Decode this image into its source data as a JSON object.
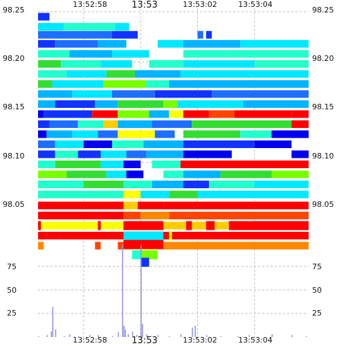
{
  "chart_data": {
    "type": "heatmap",
    "title": "",
    "x_ticks": [
      "13:52:58",
      "13:53",
      "13:53:02",
      "13:53:04"
    ],
    "x_tick_seconds": [
      -2,
      0,
      2,
      4
    ],
    "x_range_seconds": [
      -3.6,
      5.9
    ],
    "price_ticks": [
      "98.25",
      "98.20",
      "98.15",
      "98.10",
      "98.05"
    ],
    "price_tick_values": [
      98.25,
      98.2,
      98.15,
      98.1,
      98.05
    ],
    "price_range": [
      98.017,
      98.252
    ],
    "volume_ticks": [
      "75",
      "50",
      "25"
    ],
    "volume_tick_values": [
      75,
      50,
      25
    ],
    "volume_range": [
      0,
      98
    ],
    "grid": true,
    "colors": {
      "grid": "#bbbbbb",
      "volume_bar": "#8f8fe0",
      "palette": [
        "#0000ee",
        "#1133ff",
        "#1e6fff",
        "#00b4ff",
        "#00e8ff",
        "#22ffcc",
        "#33dd33",
        "#77ff00",
        "#ffff00",
        "#ffcc00",
        "#ff8800",
        "#ff4400",
        "#ff0000"
      ]
    },
    "ladder_bands": [
      {
        "price": 98.245,
        "segments": [
          [
            -3.6,
            -3.2,
            1
          ]
        ]
      },
      {
        "price": 98.235,
        "segments": [
          [
            -3.6,
            -2.7,
            4
          ],
          [
            -2.7,
            -0.9,
            5
          ],
          [
            -0.9,
            -0.4,
            4
          ]
        ]
      },
      {
        "price": 98.227,
        "segments": [
          [
            -3.6,
            -1.0,
            2
          ],
          [
            -1.0,
            -0.1,
            1
          ],
          [
            2.0,
            2.2,
            2
          ],
          [
            2.3,
            2.5,
            1
          ]
        ]
      },
      {
        "price": 98.218,
        "segments": [
          [
            -3.6,
            -3.0,
            1
          ],
          [
            -3.0,
            -1.5,
            2
          ],
          [
            -1.5,
            -0.5,
            3
          ],
          [
            0.6,
            1.5,
            4
          ],
          [
            1.5,
            3.5,
            3
          ],
          [
            3.5,
            5.9,
            4
          ]
        ]
      },
      {
        "price": 98.208,
        "segments": [
          [
            -3.6,
            -2.5,
            5
          ],
          [
            -2.5,
            -1.0,
            3
          ],
          [
            -1.0,
            0.3,
            4
          ],
          [
            1.5,
            3.0,
            5
          ],
          [
            3.0,
            5.9,
            5
          ]
        ]
      },
      {
        "price": 98.198,
        "segments": [
          [
            -3.6,
            -2.8,
            6
          ],
          [
            -2.8,
            -1.4,
            5
          ],
          [
            -1.4,
            -0.3,
            4
          ],
          [
            0.3,
            1.5,
            5
          ],
          [
            1.5,
            4.0,
            4
          ],
          [
            4.0,
            5.9,
            5
          ]
        ]
      },
      {
        "price": 98.188,
        "segments": [
          [
            -3.6,
            -2.6,
            5
          ],
          [
            -2.6,
            -1.2,
            4
          ],
          [
            -1.2,
            -0.2,
            6
          ],
          [
            -0.2,
            1.4,
            3
          ],
          [
            1.4,
            5.9,
            4
          ]
        ]
      },
      {
        "price": 98.178,
        "segments": [
          [
            -3.6,
            -3.1,
            6
          ],
          [
            -3.1,
            -1.3,
            4
          ],
          [
            -1.3,
            0.2,
            7
          ],
          [
            0.2,
            1.0,
            5
          ],
          [
            1.0,
            5.9,
            3
          ]
        ]
      },
      {
        "price": 98.168,
        "segments": [
          [
            -3.6,
            -2.4,
            3
          ],
          [
            -2.4,
            -1.0,
            4
          ],
          [
            -1.0,
            0.5,
            2
          ],
          [
            0.5,
            2.5,
            1
          ],
          [
            2.5,
            5.9,
            2
          ]
        ]
      },
      {
        "price": 98.158,
        "segments": [
          [
            -3.6,
            -3.0,
            3
          ],
          [
            -3.0,
            -1.6,
            1
          ],
          [
            -1.6,
            -0.8,
            3
          ],
          [
            -0.8,
            0.8,
            6
          ],
          [
            0.8,
            1.3,
            7
          ],
          [
            1.3,
            3.6,
            4
          ],
          [
            3.6,
            5.9,
            3
          ]
        ]
      },
      {
        "price": 98.148,
        "segments": [
          [
            -3.6,
            -3.4,
            0
          ],
          [
            -3.4,
            -1.7,
            1
          ],
          [
            -1.7,
            -0.8,
            12
          ],
          [
            -0.8,
            0.3,
            7
          ],
          [
            0.3,
            1.0,
            3
          ],
          [
            1.0,
            1.5,
            8
          ],
          [
            1.5,
            2.4,
            12
          ],
          [
            2.4,
            3.3,
            11
          ],
          [
            3.3,
            5.3,
            12
          ],
          [
            5.3,
            5.9,
            12
          ]
        ]
      },
      {
        "price": 98.138,
        "segments": [
          [
            -3.6,
            -3.2,
            1
          ],
          [
            -3.2,
            -2.2,
            2
          ],
          [
            -2.2,
            -1.3,
            5
          ],
          [
            -1.3,
            -0.8,
            9
          ],
          [
            -0.8,
            0.4,
            3
          ],
          [
            0.4,
            1.8,
            2
          ],
          [
            1.8,
            4.6,
            6
          ],
          [
            4.6,
            5.3,
            6
          ],
          [
            5.3,
            5.9,
            12
          ]
        ]
      },
      {
        "price": 98.128,
        "segments": [
          [
            -3.6,
            -3.3,
            0
          ],
          [
            -3.3,
            -2.4,
            3
          ],
          [
            -2.4,
            -1.5,
            4
          ],
          [
            -1.5,
            -0.8,
            2
          ],
          [
            -0.8,
            0.5,
            8
          ],
          [
            0.5,
            1.2,
            2
          ],
          [
            1.5,
            3.5,
            6
          ],
          [
            3.5,
            4.6,
            5
          ],
          [
            4.6,
            5.9,
            0
          ]
        ]
      },
      {
        "price": 98.118,
        "segments": [
          [
            -3.6,
            -3.0,
            2
          ],
          [
            -3.0,
            -2.0,
            4
          ],
          [
            -2.0,
            -1.0,
            0
          ],
          [
            -1.0,
            0.1,
            5
          ],
          [
            0.1,
            1.5,
            3
          ],
          [
            1.5,
            4.0,
            1
          ],
          [
            4.0,
            5.3,
            0
          ]
        ]
      },
      {
        "price": 98.108,
        "segments": [
          [
            -3.6,
            -3.0,
            1
          ],
          [
            -3.0,
            -2.2,
            5
          ],
          [
            -2.2,
            -1.4,
            1
          ],
          [
            -1.4,
            -0.5,
            4
          ],
          [
            -0.5,
            0.2,
            2
          ],
          [
            0.2,
            1.5,
            3
          ],
          [
            1.5,
            3.2,
            0
          ],
          [
            5.3,
            5.9,
            0
          ]
        ]
      },
      {
        "price": 98.098,
        "segments": [
          [
            -3.6,
            -3.0,
            5
          ],
          [
            -3.0,
            -1.4,
            6
          ],
          [
            -1.4,
            -0.6,
            4
          ],
          [
            -0.6,
            0.0,
            0
          ],
          [
            0.4,
            1.4,
            5
          ],
          [
            1.4,
            5.9,
            12
          ]
        ]
      },
      {
        "price": 98.088,
        "segments": [
          [
            -3.6,
            -2.6,
            7
          ],
          [
            -2.6,
            -1.2,
            6
          ],
          [
            -1.2,
            -0.5,
            4
          ],
          [
            -0.5,
            0.1,
            0
          ],
          [
            0.8,
            1.5,
            5
          ],
          [
            1.5,
            2.8,
            3
          ],
          [
            2.8,
            4.6,
            6
          ],
          [
            4.6,
            5.9,
            7
          ]
        ]
      },
      {
        "price": 98.078,
        "segments": [
          [
            -3.6,
            -2.0,
            5
          ],
          [
            -2.0,
            -0.6,
            6
          ],
          [
            -0.6,
            0.4,
            5
          ],
          [
            0.4,
            1.5,
            3
          ],
          [
            1.5,
            2.4,
            1
          ],
          [
            2.4,
            4.0,
            5
          ],
          [
            4.0,
            5.9,
            4
          ]
        ]
      },
      {
        "price": 98.068,
        "segments": [
          [
            -3.6,
            -0.6,
            5
          ],
          [
            -0.6,
            0.0,
            8
          ],
          [
            0.0,
            1.0,
            4
          ],
          [
            1.0,
            2.0,
            6
          ],
          [
            2.0,
            5.9,
            4
          ]
        ]
      },
      {
        "price": 98.057,
        "segments": [
          [
            -3.6,
            -0.6,
            12
          ],
          [
            -0.6,
            -0.1,
            9
          ],
          [
            -0.1,
            0.8,
            12
          ],
          [
            0.8,
            5.9,
            12
          ]
        ]
      },
      {
        "price": 98.047,
        "segments": [
          [
            -3.6,
            -0.6,
            12
          ],
          [
            -0.6,
            0.0,
            11
          ],
          [
            0.0,
            1.0,
            10
          ],
          [
            1.0,
            5.9,
            11
          ]
        ]
      },
      {
        "price": 98.037,
        "segments": [
          [
            -3.6,
            -0.6,
            8
          ],
          [
            -0.6,
            0.3,
            9
          ],
          [
            0.3,
            5.9,
            9
          ]
        ]
      },
      {
        "price": 98.027,
        "segments": [
          [
            -3.6,
            -3.3,
            12
          ],
          [
            -3.3,
            -2.8,
            12
          ],
          [
            -2.8,
            -0.6,
            12
          ],
          [
            -0.6,
            0.3,
            12
          ],
          [
            0.3,
            5.9,
            12
          ]
        ]
      },
      {
        "price": 98.017,
        "segments": [
          [
            -3.6,
            -3.4,
            10
          ],
          [
            -1.6,
            -1.4,
            11
          ],
          [
            -0.8,
            -0.6,
            11
          ],
          [
            -0.6,
            5.9,
            10
          ]
        ]
      }
    ],
    "lower_bands": [
      {
        "volume": 118,
        "segments": [
          [
            -3.6,
            -3.5,
            12
          ],
          [
            -1.5,
            -1.4,
            12
          ],
          [
            -0.6,
            -0.5,
            12
          ],
          [
            -0.6,
            0.8,
            12
          ],
          [
            1.6,
            1.8,
            12
          ],
          [
            2.3,
            2.6,
            12
          ],
          [
            3.1,
            5.9,
            12
          ]
        ]
      },
      {
        "volume": 107,
        "segments": [
          [
            -0.6,
            0.8,
            4
          ],
          [
            1.0,
            1.1,
            8
          ]
        ]
      },
      {
        "volume": 98,
        "segments": [
          [
            -0.6,
            0.8,
            12
          ]
        ]
      },
      {
        "volume": 87,
        "segments": [
          [
            0.0,
            0.6,
            7
          ],
          [
            -0.3,
            0.0,
            5
          ]
        ]
      },
      {
        "volume": 79,
        "segments": [
          [
            0.0,
            0.2,
            1
          ],
          [
            0.1,
            0.3,
            1
          ]
        ]
      }
    ],
    "volume_series": [
      {
        "t": -3.6,
        "v": 1
      },
      {
        "t": -3.3,
        "v": 2
      },
      {
        "t": -3.15,
        "v": 6
      },
      {
        "t": -3.1,
        "v": 32
      },
      {
        "t": -3.0,
        "v": 8
      },
      {
        "t": -2.7,
        "v": 1
      },
      {
        "t": -2.5,
        "v": 3
      },
      {
        "t": -2.2,
        "v": 1
      },
      {
        "t": -1.8,
        "v": 2
      },
      {
        "t": -1.5,
        "v": 2
      },
      {
        "t": -1.0,
        "v": 1
      },
      {
        "t": -0.8,
        "v": 5
      },
      {
        "t": -0.65,
        "v": 98
      },
      {
        "t": -0.6,
        "v": 12
      },
      {
        "t": -0.55,
        "v": 8
      },
      {
        "t": -0.45,
        "v": 3
      },
      {
        "t": -0.3,
        "v": 6
      },
      {
        "t": -0.15,
        "v": 2
      },
      {
        "t": 0.0,
        "v": 98
      },
      {
        "t": 0.05,
        "v": 14
      },
      {
        "t": 0.2,
        "v": 3
      },
      {
        "t": 0.35,
        "v": 1
      },
      {
        "t": 0.6,
        "v": 2
      },
      {
        "t": 1.0,
        "v": 1
      },
      {
        "t": 1.4,
        "v": 3
      },
      {
        "t": 1.8,
        "v": 10
      },
      {
        "t": 1.9,
        "v": 12
      },
      {
        "t": 2.3,
        "v": 2
      },
      {
        "t": 2.8,
        "v": 1
      },
      {
        "t": 3.4,
        "v": 1
      },
      {
        "t": 3.8,
        "v": 2
      },
      {
        "t": 4.6,
        "v": 3
      },
      {
        "t": 5.3,
        "v": 2
      },
      {
        "t": 5.8,
        "v": 1
      }
    ]
  }
}
